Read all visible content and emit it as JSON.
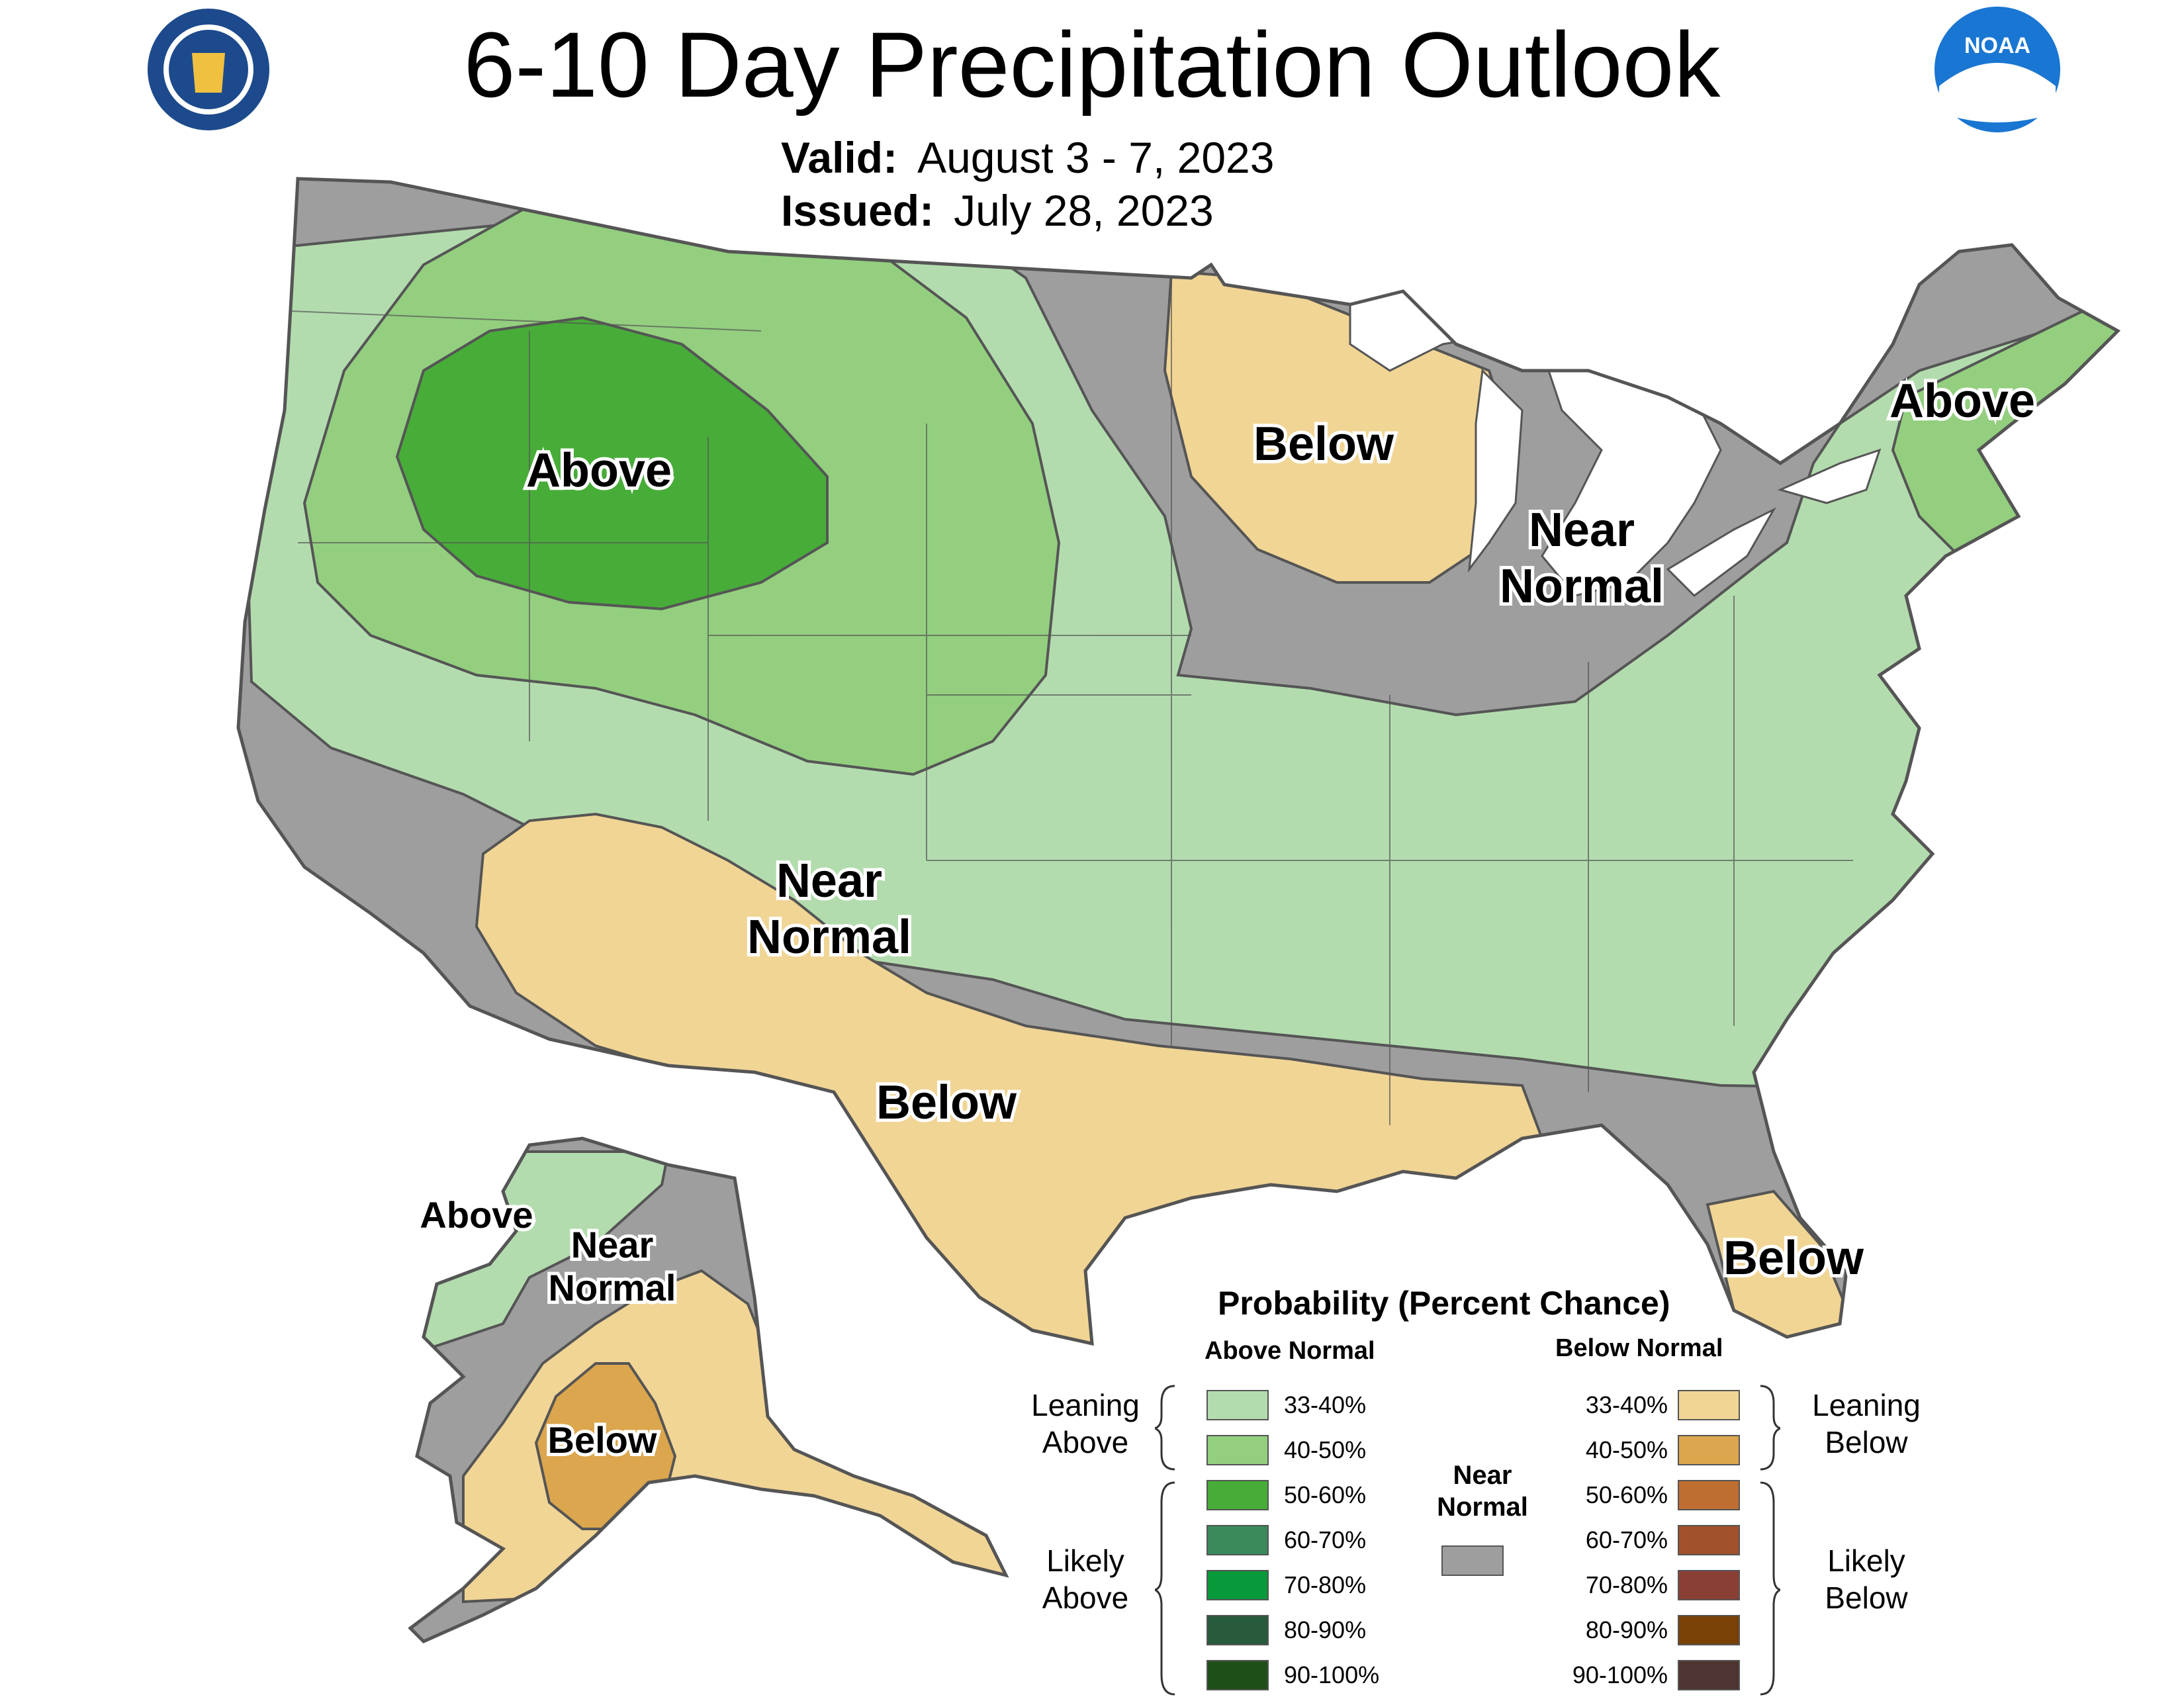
{
  "header": {
    "title": "6-10 Day Precipitation Outlook",
    "valid_label": "Valid:",
    "valid_value": "August 3 - 7, 2023",
    "issued_label": "Issued:",
    "issued_value": "July 28, 2023",
    "logo_left": "Department of Commerce seal",
    "logo_right": "NOAA"
  },
  "regions": [
    {
      "label": "Above"
    },
    {
      "label": "Below"
    },
    {
      "label": "Near"
    },
    {
      "label": "Normal"
    },
    {
      "label": "Above"
    },
    {
      "label": "Near"
    },
    {
      "label": "Normal"
    },
    {
      "label": "Below"
    },
    {
      "label": "Below"
    },
    {
      "label": "Above"
    },
    {
      "label": "Near"
    },
    {
      "label": "Normal"
    },
    {
      "label": "Below"
    }
  ],
  "legend": {
    "title": "Probability (Percent Chance)",
    "above_head": "Above Normal",
    "below_head": "Below Normal",
    "near_head_1": "Near",
    "near_head_2": "Normal",
    "near_color": "#9e9e9e",
    "leaning_above_1": "Leaning",
    "leaning_above_2": "Above",
    "likely_above_1": "Likely",
    "likely_above_2": "Above",
    "leaning_below_1": "Leaning",
    "leaning_below_2": "Below",
    "likely_below_1": "Likely",
    "likely_below_2": "Below",
    "above_bins": [
      {
        "pct": "33-40%",
        "color": "#b3dcae"
      },
      {
        "pct": "40-50%",
        "color": "#93cf7f"
      },
      {
        "pct": "50-60%",
        "color": "#47ad38"
      },
      {
        "pct": "60-70%",
        "color": "#3a8a5c"
      },
      {
        "pct": "70-80%",
        "color": "#08993a"
      },
      {
        "pct": "80-90%",
        "color": "#285a3c"
      },
      {
        "pct": "90-100%",
        "color": "#1f4f18"
      }
    ],
    "below_bins": [
      {
        "pct": "33-40%",
        "color": "#f1d595"
      },
      {
        "pct": "40-50%",
        "color": "#dba64d"
      },
      {
        "pct": "50-60%",
        "color": "#bf6e32"
      },
      {
        "pct": "60-70%",
        "color": "#a1502c"
      },
      {
        "pct": "70-80%",
        "color": "#8a3f35"
      },
      {
        "pct": "80-90%",
        "color": "#7a4107"
      },
      {
        "pct": "90-100%",
        "color": "#4e3432"
      }
    ]
  }
}
